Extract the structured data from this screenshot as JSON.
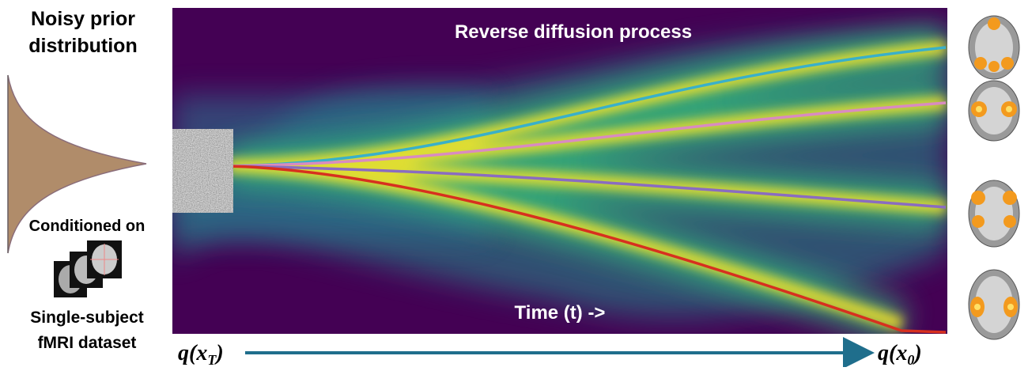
{
  "prior": {
    "title": [
      "Noisy prior",
      "distribution"
    ]
  },
  "condition": {
    "label": "Conditioned on",
    "dataset": [
      "Single-subject",
      "fMRI dataset"
    ]
  },
  "heatmap": {
    "title": "Reverse diffusion process",
    "time_label": "Time (t) ->"
  },
  "axis": {
    "start": {
      "main": "q(x",
      "sub": "T",
      "close": ")"
    },
    "end": {
      "main": "q(x",
      "sub": "0",
      "close": ")"
    }
  }
}
